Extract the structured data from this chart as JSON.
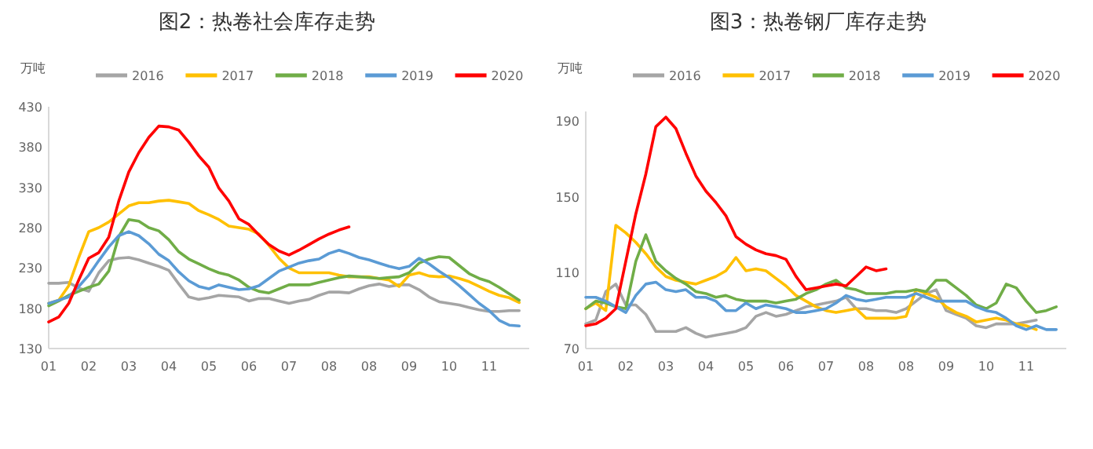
{
  "chart_data": [
    {
      "type": "line",
      "title": "图2：热卷社会库存走势",
      "ylabel": "万吨",
      "legend": "top",
      "grid": false,
      "marker": "none",
      "line_style": "solid",
      "categories": [
        "01",
        null,
        null,
        null,
        "02",
        null,
        null,
        null,
        "03",
        null,
        null,
        null,
        "04",
        null,
        null,
        null,
        "05",
        null,
        null,
        null,
        "06",
        null,
        null,
        null,
        "07",
        null,
        null,
        null,
        "08",
        null,
        null,
        null,
        "08",
        null,
        null,
        null,
        "09",
        null,
        null,
        null,
        "10",
        null,
        null,
        null,
        "11",
        null,
        null,
        null
      ],
      "ylim": [
        130,
        430
      ],
      "yticks": [
        130,
        180,
        230,
        280,
        330,
        380,
        430
      ],
      "series": [
        {
          "name": "2016",
          "color": "#a5a5a5",
          "values": [
            211,
            211,
            212,
            205,
            201,
            224,
            239,
            242,
            243,
            240,
            236,
            232,
            227,
            210,
            194,
            191,
            193,
            196,
            195,
            194,
            189,
            192,
            192,
            189,
            186,
            189,
            191,
            196,
            200,
            200,
            199,
            204,
            208,
            210,
            207,
            209,
            209,
            203,
            194,
            188,
            186,
            184,
            181,
            178,
            176,
            176,
            177,
            177
          ]
        },
        {
          "name": "2017",
          "color": "#ffc000",
          "values": [
            186,
            190,
            208,
            243,
            275,
            280,
            287,
            297,
            307,
            311,
            311,
            313,
            314,
            312,
            310,
            301,
            296,
            290,
            282,
            280,
            278,
            272,
            258,
            242,
            230,
            224,
            224,
            224,
            224,
            221,
            219,
            219,
            219,
            217,
            215,
            207,
            221,
            224,
            220,
            219,
            220,
            217,
            213,
            207,
            201,
            196,
            193,
            187
          ]
        },
        {
          "name": "2018",
          "color": "#70ad47",
          "values": [
            183,
            189,
            196,
            201,
            206,
            210,
            226,
            269,
            290,
            288,
            280,
            276,
            265,
            250,
            241,
            235,
            229,
            224,
            221,
            215,
            206,
            201,
            199,
            204,
            209,
            209,
            209,
            212,
            215,
            218,
            220,
            219,
            218,
            217,
            218,
            219,
            224,
            236,
            241,
            244,
            243,
            233,
            223,
            217,
            213,
            206,
            198,
            190
          ]
        },
        {
          "name": "2019",
          "color": "#5b9bd5",
          "values": [
            186,
            190,
            194,
            207,
            221,
            239,
            256,
            270,
            275,
            270,
            260,
            247,
            239,
            225,
            214,
            207,
            204,
            209,
            206,
            203,
            204,
            208,
            217,
            226,
            231,
            236,
            239,
            241,
            248,
            252,
            248,
            243,
            240,
            236,
            232,
            229,
            232,
            242,
            235,
            226,
            218,
            208,
            197,
            186,
            177,
            165,
            159,
            158
          ]
        },
        {
          "name": "2020",
          "color": "#ff0000",
          "values": [
            163,
            169,
            186,
            215,
            242,
            249,
            268,
            313,
            349,
            373,
            392,
            406,
            405,
            401,
            386,
            369,
            355,
            329,
            313,
            291,
            284,
            271,
            259,
            251,
            246,
            252,
            259,
            266,
            272,
            277,
            281,
            null,
            null,
            null,
            null,
            null,
            null,
            null,
            null,
            null,
            null,
            null,
            null,
            null,
            null,
            null,
            null,
            null
          ]
        }
      ]
    },
    {
      "type": "line",
      "title": "图3：热卷钢厂库存走势",
      "ylabel": "万吨",
      "legend": "top",
      "grid": false,
      "marker": "none",
      "line_style": "solid",
      "categories": [
        "01",
        null,
        null,
        null,
        "02",
        null,
        null,
        null,
        "03",
        null,
        null,
        null,
        "04",
        null,
        null,
        null,
        "05",
        null,
        null,
        null,
        "06",
        null,
        null,
        null,
        "07",
        null,
        null,
        null,
        "08",
        null,
        null,
        null,
        "08",
        null,
        null,
        null,
        "09",
        null,
        null,
        null,
        "10",
        null,
        null,
        null,
        "11",
        null,
        null,
        null
      ],
      "ylim": [
        70,
        195
      ],
      "yticks": [
        70,
        110,
        150,
        190
      ],
      "series": [
        {
          "name": "2016",
          "color": "#a5a5a5",
          "values": [
            83,
            85,
            100,
            104,
            93,
            93,
            88,
            79,
            79,
            79,
            81,
            78,
            76,
            77,
            78,
            79,
            81,
            87,
            89,
            87,
            88,
            90,
            92,
            93,
            94,
            95,
            97,
            91,
            91,
            90,
            90,
            89,
            91,
            95,
            99,
            101,
            90,
            88,
            86,
            82,
            81,
            83,
            83,
            83,
            84,
            85,
            null,
            null
          ]
        },
        {
          "name": "2017",
          "color": "#ffc000",
          "values": [
            91,
            94,
            90,
            135,
            131,
            126,
            120,
            113,
            108,
            106,
            105,
            104,
            106,
            108,
            111,
            118,
            111,
            112,
            111,
            107,
            103,
            98,
            95,
            92,
            90,
            89,
            90,
            91,
            86,
            86,
            86,
            86,
            87,
            101,
            99,
            97,
            92,
            89,
            87,
            84,
            85,
            86,
            85,
            83,
            82,
            80,
            null,
            null
          ]
        },
        {
          "name": "2018",
          "color": "#70ad47",
          "values": [
            91,
            95,
            94,
            92,
            91,
            116,
            130,
            116,
            111,
            107,
            104,
            100,
            99,
            97,
            98,
            96,
            95,
            95,
            95,
            94,
            95,
            96,
            99,
            101,
            104,
            106,
            102,
            101,
            99,
            99,
            99,
            100,
            100,
            101,
            100,
            106,
            106,
            102,
            98,
            93,
            91,
            94,
            104,
            102,
            95,
            89,
            90,
            92
          ]
        },
        {
          "name": "2019",
          "color": "#5b9bd5",
          "values": [
            97,
            97,
            95,
            92,
            89,
            98,
            104,
            105,
            101,
            100,
            101,
            97,
            97,
            95,
            90,
            90,
            94,
            91,
            93,
            92,
            91,
            89,
            89,
            90,
            91,
            94,
            98,
            96,
            95,
            96,
            97,
            97,
            97,
            99,
            97,
            95,
            95,
            95,
            95,
            92,
            90,
            89,
            86,
            82,
            80,
            82,
            80,
            80
          ]
        },
        {
          "name": "2020",
          "color": "#ff0000",
          "values": [
            82,
            83,
            86,
            91,
            116,
            141,
            162,
            187,
            192,
            186,
            173,
            161,
            153,
            147,
            140,
            129,
            125,
            122,
            120,
            119,
            117,
            108,
            101,
            102,
            103,
            104,
            103,
            108,
            113,
            111,
            112,
            null,
            null,
            null,
            null,
            null,
            null,
            null,
            null,
            null,
            null,
            null,
            null,
            null,
            null,
            null,
            null,
            null
          ]
        }
      ]
    }
  ]
}
